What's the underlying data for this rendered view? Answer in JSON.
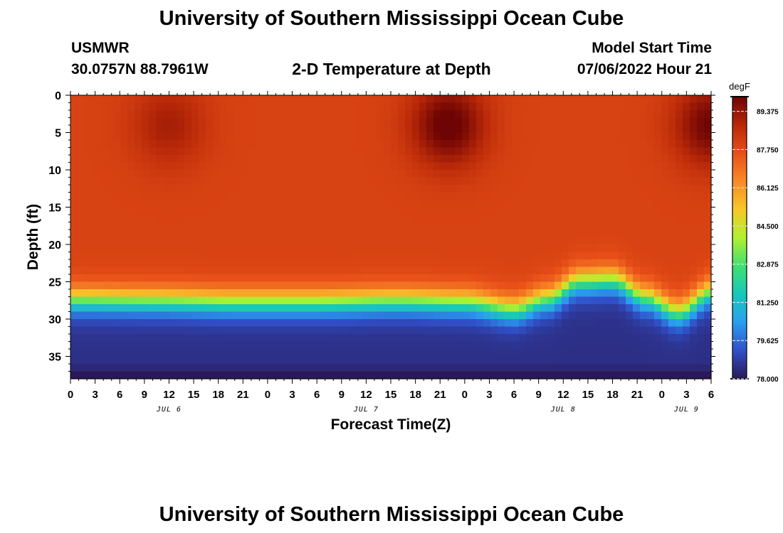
{
  "header": {
    "title": "University of Southern Mississippi Ocean Cube",
    "station": "USMWR",
    "coordinates": "30.0757N  88.7961W",
    "subtitle": "2-D Temperature at Depth",
    "model_start_label": "Model Start Time",
    "model_start_value": "07/06/2022 Hour 21"
  },
  "footer": {
    "title": "University of Southern Mississippi Ocean Cube"
  },
  "chart_data": {
    "type": "heatmap",
    "title": "2-D Temperature at Depth",
    "xlabel": "Forecast Time(Z)",
    "ylabel": "Depth (ft)",
    "x_range_hours": [
      0,
      78
    ],
    "y_range_ft": [
      0,
      38
    ],
    "x_tick_labels": [
      "0",
      "3",
      "6",
      "9",
      "12",
      "15",
      "18",
      "21",
      "0",
      "3",
      "6",
      "9",
      "12",
      "15",
      "18",
      "21",
      "0",
      "3",
      "6",
      "9",
      "12",
      "15",
      "18",
      "21",
      "0",
      "3",
      "6"
    ],
    "date_labels": [
      {
        "text": "JUL 6",
        "hour": 12
      },
      {
        "text": "JUL 7",
        "hour": 36
      },
      {
        "text": "JUL 8",
        "hour": 60
      },
      {
        "text": "JUL 9",
        "hour": 75
      }
    ],
    "y_ticks": [
      0,
      5,
      10,
      15,
      20,
      25,
      30,
      35
    ],
    "colorbar": {
      "unit": "degF",
      "min": 78.0,
      "max": 90.0,
      "tick_labels": [
        "89.375",
        "87.750",
        "86.125",
        "84.500",
        "82.875",
        "81.250",
        "79.625",
        "78.000"
      ],
      "colors": [
        "#2a1858",
        "#3050c8",
        "#2a9ef0",
        "#18c8b8",
        "#40e070",
        "#b0f030",
        "#f8c828",
        "#f88a28",
        "#e85018",
        "#b82808",
        "#6e0404"
      ]
    },
    "thermocline_depth_ft": [
      {
        "hour": 0,
        "depth": 27.5
      },
      {
        "hour": 10,
        "depth": 27.6
      },
      {
        "hour": 20,
        "depth": 27.8
      },
      {
        "hour": 30,
        "depth": 27.8
      },
      {
        "hour": 40,
        "depth": 27.6
      },
      {
        "hour": 48,
        "depth": 27.8
      },
      {
        "hour": 54,
        "depth": 28.8
      },
      {
        "hour": 58,
        "depth": 27.4
      },
      {
        "hour": 62,
        "depth": 25.0
      },
      {
        "hour": 66,
        "depth": 24.8
      },
      {
        "hour": 70,
        "depth": 27.2
      },
      {
        "hour": 74,
        "depth": 29.2
      },
      {
        "hour": 78,
        "depth": 26.5
      }
    ],
    "warm_cores": [
      {
        "hour": 12,
        "depth": 4,
        "delta_degF": 1.1
      },
      {
        "hour": 46,
        "depth": 4,
        "delta_degF": 2.2
      },
      {
        "hour": 78,
        "depth": 4,
        "delta_degF": 2.0
      }
    ],
    "surface_temp_degF": 88.0,
    "bottom_temp_degF": 78.5
  }
}
